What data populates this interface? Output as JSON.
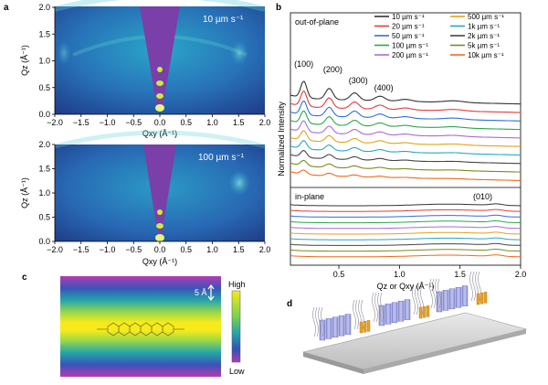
{
  "panels": {
    "a": {
      "label": "a",
      "top": {
        "rate_label": "10 µm s⁻¹",
        "ylabel": "Qz (Å⁻¹)",
        "xlabel": "Qxy (Å⁻¹)",
        "xticks": [
          "−2.0",
          "−1.5",
          "−1.0",
          "−0.5",
          "0.0",
          "0.5",
          "1.0",
          "1.5",
          "2.0"
        ],
        "yticks": [
          "0.0",
          "0.5",
          "1.0",
          "1.5",
          "2.0"
        ]
      },
      "bottom": {
        "rate_label": "100 µm s⁻¹",
        "ylabel": "Qz (Å⁻¹)",
        "xlabel": "Qxy (Å⁻¹)",
        "xticks": [
          "−2.0",
          "−1.5",
          "−1.0",
          "−0.5",
          "0.0",
          "0.5",
          "1.0",
          "1.5",
          "2.0"
        ],
        "yticks": [
          "0.0",
          "0.5",
          "1.0",
          "1.5",
          "2.0"
        ]
      }
    },
    "b": {
      "label": "b",
      "ylabel": "Normalized Intensity",
      "xlabel": "Qz or Qxy (Å⁻¹)",
      "oop_label": "out-of-plane",
      "ip_label": "in-plane",
      "peaks": [
        "(100)",
        "(200)",
        "(300)",
        "(400)"
      ],
      "ip_peak": "(010)",
      "xticks": [
        "0.5",
        "1.0",
        "1.5",
        "2.0"
      ]
    },
    "c": {
      "label": "c",
      "scale_label": "5 Å",
      "high_label": "High",
      "low_label": "Low"
    },
    "d": {
      "label": "d"
    }
  },
  "chart_data": {
    "type": "line",
    "x_range": [
      0.1,
      2.0
    ],
    "legend_placement": "top-right",
    "series": [
      {
        "name": "10 µm s⁻¹",
        "color": "#333333"
      },
      {
        "name": "20 µm s⁻¹",
        "color": "#e23b3b"
      },
      {
        "name": "50 µm s⁻¹",
        "color": "#2f6fd8"
      },
      {
        "name": "100 µm s⁻¹",
        "color": "#2aa84a"
      },
      {
        "name": "200 µm s⁻¹",
        "color": "#a96bd0"
      },
      {
        "name": "500 µm s⁻¹",
        "color": "#e2a21a"
      },
      {
        "name": "1k µm s⁻¹",
        "color": "#26a6c8"
      },
      {
        "name": "2k µm s⁻¹",
        "color": "#444444"
      },
      {
        "name": "5k µm s⁻¹",
        "color": "#7a8a1e"
      },
      {
        "name": "10k µm s⁻¹",
        "color": "#ef6a1a"
      }
    ],
    "out_of_plane_peaks_q": [
      0.21,
      0.42,
      0.63,
      0.84
    ],
    "in_plane_peak_q": 1.8
  }
}
